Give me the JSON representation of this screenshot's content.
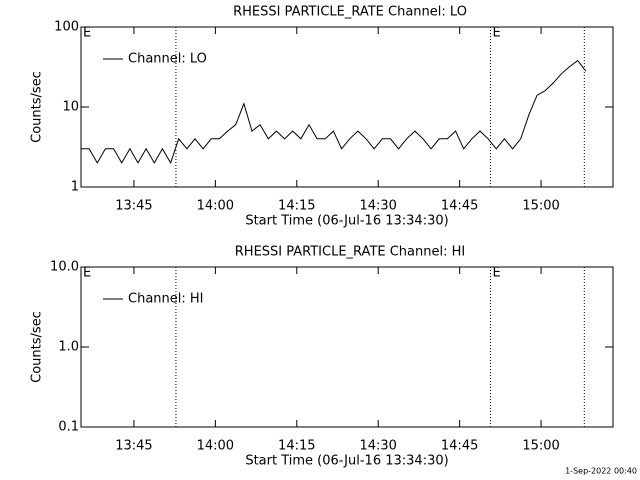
{
  "chart_data": [
    {
      "type": "line",
      "title": "RHESSI PARTICLE_RATE Channel: LO",
      "xlabel": "Start Time (06-Jul-16 13:34:30)",
      "ylabel": "Counts/sec",
      "log_y": true,
      "legend": "top-left",
      "xlim": [
        45,
        5925
      ],
      "ylim": [
        1,
        100
      ],
      "yticks": [
        1,
        10,
        100
      ],
      "xticks": [
        {
          "value": 630,
          "label": "13:45"
        },
        {
          "value": 1530,
          "label": "14:00"
        },
        {
          "value": 2430,
          "label": "14:15"
        },
        {
          "value": 3330,
          "label": "14:30"
        },
        {
          "value": 4230,
          "label": "14:45"
        },
        {
          "value": 5130,
          "label": "15:00"
        }
      ],
      "event_lines": [
        1094,
        4571,
        5608
      ],
      "annotations": [
        {
          "x": 45,
          "text": "E"
        },
        {
          "x": 4571,
          "text": "E"
        }
      ],
      "series": [
        {
          "name": "Channel: LO",
          "color": "#000000",
          "x": [
            45,
            135,
            225,
            315,
            405,
            495,
            585,
            675,
            765,
            855,
            945,
            1035,
            1125,
            1215,
            1305,
            1395,
            1485,
            1575,
            1665,
            1755,
            1845,
            1935,
            2025,
            2115,
            2205,
            2295,
            2385,
            2475,
            2565,
            2655,
            2745,
            2835,
            2925,
            3015,
            3105,
            3195,
            3285,
            3375,
            3465,
            3555,
            3645,
            3735,
            3825,
            3915,
            4005,
            4095,
            4185,
            4275,
            4365,
            4455,
            4545,
            4635,
            4725,
            4815,
            4905,
            4995,
            5085,
            5175,
            5265,
            5355,
            5445,
            5535,
            5625
          ],
          "values": [
            3,
            3,
            2,
            3,
            3,
            2,
            3,
            2,
            3,
            2,
            3,
            2,
            4,
            3,
            4,
            3,
            4,
            4,
            5,
            6,
            11,
            5,
            6,
            4,
            5,
            4,
            5,
            4,
            6,
            4,
            4,
            5,
            3,
            4,
            5,
            4,
            3,
            4,
            4,
            3,
            4,
            5,
            4,
            3,
            4,
            4,
            5,
            3,
            4,
            5,
            4,
            3,
            4,
            3,
            4,
            8,
            14,
            16,
            20,
            26,
            32,
            38,
            28
          ]
        }
      ]
    },
    {
      "type": "line",
      "title": "RHESSI PARTICLE_RATE Channel: HI",
      "xlabel": "Start Time (06-Jul-16 13:34:30)",
      "ylabel": "Counts/sec",
      "log_y": true,
      "legend": "top-left",
      "xlim": [
        45,
        5925
      ],
      "ylim": [
        0.1,
        10
      ],
      "yticks": [
        0.1,
        {
          "value": 1,
          "label": "1.0"
        },
        {
          "value": 10,
          "label": "10.0"
        }
      ],
      "xticks": [
        {
          "value": 630,
          "label": "13:45"
        },
        {
          "value": 1530,
          "label": "14:00"
        },
        {
          "value": 2430,
          "label": "14:15"
        },
        {
          "value": 3330,
          "label": "14:30"
        },
        {
          "value": 4230,
          "label": "14:45"
        },
        {
          "value": 5130,
          "label": "15:00"
        }
      ],
      "event_lines": [
        1094,
        4571,
        5608
      ],
      "annotations": [
        {
          "x": 45,
          "text": "E"
        },
        {
          "x": 4571,
          "text": "E"
        }
      ],
      "series": [
        {
          "name": "Channel: HI",
          "color": "#000000",
          "x": [],
          "values": []
        }
      ]
    }
  ],
  "footer": "1-Sep-2022 00:40"
}
